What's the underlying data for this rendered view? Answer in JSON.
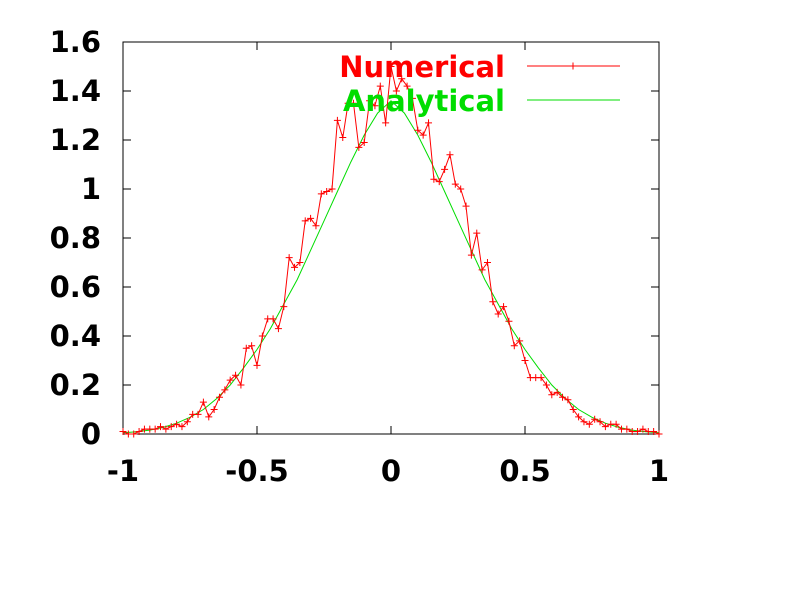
{
  "chart_data": {
    "type": "line",
    "title": "",
    "xlabel": "",
    "ylabel": "",
    "xlim": [
      -1,
      1
    ],
    "ylim": [
      0,
      1.6
    ],
    "x_ticks": [
      "-1",
      "-0.5",
      "0",
      "0.5",
      "1"
    ],
    "y_ticks": [
      "0",
      "0.2",
      "0.4",
      "0.6",
      "0.8",
      "1",
      "1.2",
      "1.4",
      "1.6"
    ],
    "grid": false,
    "legend_position": "top-right",
    "series": [
      {
        "name": "Numerical",
        "color": "#ff0000",
        "marker": "plus",
        "x": [
          -1.0,
          -0.98,
          -0.96,
          -0.94,
          -0.92,
          -0.9,
          -0.88,
          -0.86,
          -0.84,
          -0.82,
          -0.8,
          -0.78,
          -0.76,
          -0.74,
          -0.72,
          -0.7,
          -0.68,
          -0.66,
          -0.64,
          -0.62,
          -0.6,
          -0.58,
          -0.56,
          -0.54,
          -0.52,
          -0.5,
          -0.48,
          -0.46,
          -0.44,
          -0.42,
          -0.4,
          -0.38,
          -0.36,
          -0.34,
          -0.32,
          -0.3,
          -0.28,
          -0.26,
          -0.24,
          -0.22,
          -0.2,
          -0.18,
          -0.16,
          -0.14,
          -0.12,
          -0.1,
          -0.08,
          -0.06,
          -0.04,
          -0.02,
          0.0,
          0.02,
          0.04,
          0.06,
          0.08,
          0.1,
          0.12,
          0.14,
          0.16,
          0.18,
          0.2,
          0.22,
          0.24,
          0.26,
          0.28,
          0.3,
          0.32,
          0.34,
          0.36,
          0.38,
          0.4,
          0.42,
          0.44,
          0.46,
          0.48,
          0.5,
          0.52,
          0.54,
          0.56,
          0.58,
          0.6,
          0.62,
          0.64,
          0.66,
          0.68,
          0.7,
          0.72,
          0.74,
          0.76,
          0.78,
          0.8,
          0.82,
          0.84,
          0.86,
          0.88,
          0.9,
          0.92,
          0.94,
          0.96,
          0.98,
          1.0
        ],
        "y": [
          0.01,
          0.0,
          0.0,
          0.01,
          0.02,
          0.02,
          0.02,
          0.03,
          0.02,
          0.03,
          0.04,
          0.03,
          0.05,
          0.08,
          0.08,
          0.13,
          0.07,
          0.1,
          0.15,
          0.18,
          0.22,
          0.24,
          0.2,
          0.35,
          0.36,
          0.28,
          0.4,
          0.47,
          0.47,
          0.43,
          0.52,
          0.72,
          0.68,
          0.7,
          0.87,
          0.88,
          0.85,
          0.98,
          0.99,
          1.0,
          1.28,
          1.21,
          1.35,
          1.35,
          1.17,
          1.19,
          1.36,
          1.34,
          1.42,
          1.27,
          1.5,
          1.4,
          1.45,
          1.42,
          1.37,
          1.24,
          1.22,
          1.27,
          1.04,
          1.03,
          1.08,
          1.14,
          1.02,
          1.0,
          0.93,
          0.73,
          0.82,
          0.67,
          0.7,
          0.54,
          0.49,
          0.52,
          0.46,
          0.36,
          0.38,
          0.3,
          0.23,
          0.23,
          0.23,
          0.2,
          0.16,
          0.17,
          0.15,
          0.14,
          0.1,
          0.07,
          0.05,
          0.04,
          0.06,
          0.05,
          0.03,
          0.04,
          0.04,
          0.02,
          0.02,
          0.01,
          0.01,
          0.02,
          0.01,
          0.01,
          0.0
        ]
      },
      {
        "name": "Analytical",
        "color": "#00dd00",
        "marker": "none",
        "x": [
          -1.0,
          -0.95,
          -0.9,
          -0.85,
          -0.8,
          -0.75,
          -0.7,
          -0.65,
          -0.6,
          -0.55,
          -0.5,
          -0.45,
          -0.4,
          -0.35,
          -0.3,
          -0.25,
          -0.2,
          -0.15,
          -0.1,
          -0.05,
          0.0,
          0.05,
          0.1,
          0.15,
          0.2,
          0.25,
          0.3,
          0.35,
          0.4,
          0.45,
          0.5,
          0.55,
          0.6,
          0.65,
          0.7,
          0.75,
          0.8,
          0.85,
          0.9,
          0.95,
          1.0
        ],
        "y": [
          0.005,
          0.009,
          0.016,
          0.027,
          0.044,
          0.068,
          0.1,
          0.145,
          0.2,
          0.27,
          0.345,
          0.43,
          0.53,
          0.63,
          0.75,
          0.87,
          0.99,
          1.11,
          1.22,
          1.31,
          1.36,
          1.31,
          1.22,
          1.11,
          0.99,
          0.87,
          0.75,
          0.63,
          0.53,
          0.43,
          0.345,
          0.27,
          0.2,
          0.145,
          0.1,
          0.068,
          0.044,
          0.027,
          0.016,
          0.009,
          0.005
        ]
      }
    ]
  }
}
